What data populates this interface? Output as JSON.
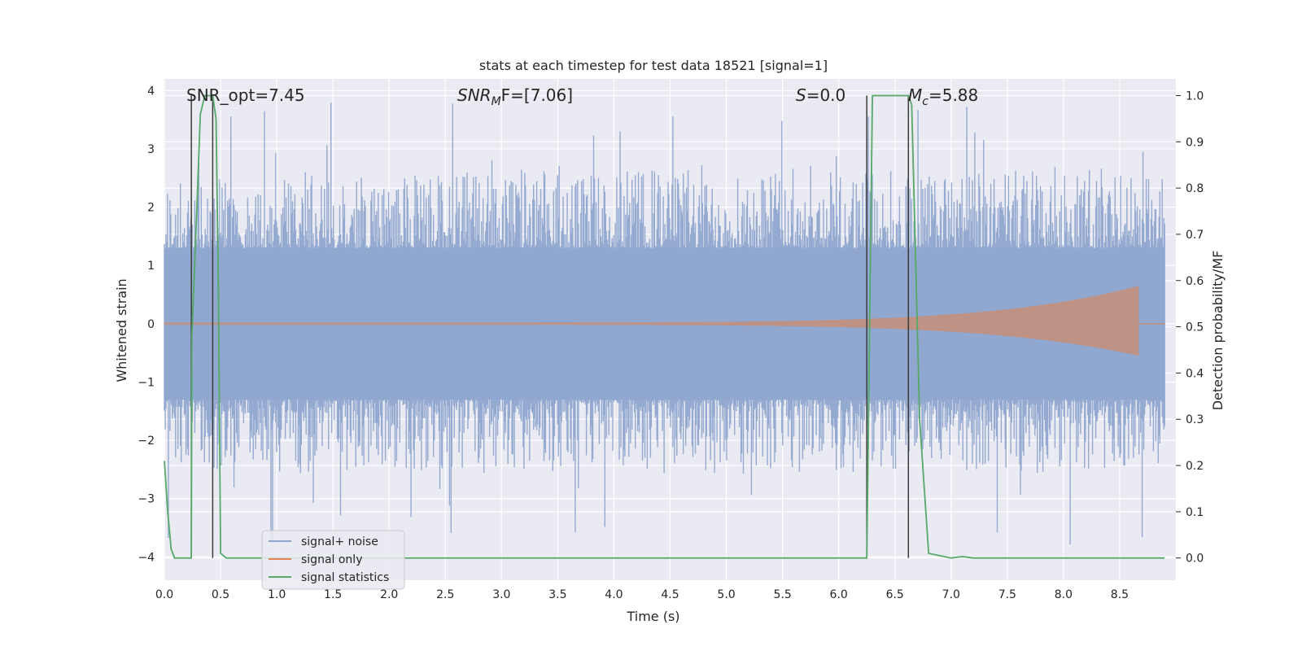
{
  "chart_data": {
    "type": "line",
    "title": "stats at each timestep for test data 18521 [signal=1]",
    "xlabel": "Time (s)",
    "ylabel_left": "Whitened strain",
    "ylabel_right": "Detection probability/MF",
    "xlim": [
      0.0,
      9.0
    ],
    "ylim_left": [
      -4.4,
      4.2
    ],
    "ylim_right": [
      -0.048,
      1.036
    ],
    "xticks": [
      "0.0",
      "0.5",
      "1.0",
      "1.5",
      "2.0",
      "2.5",
      "3.0",
      "3.5",
      "4.0",
      "4.5",
      "5.0",
      "5.5",
      "6.0",
      "6.5",
      "7.0",
      "7.5",
      "8.0",
      "8.5"
    ],
    "xtick_values": [
      0.0,
      0.5,
      1.0,
      1.5,
      2.0,
      2.5,
      3.0,
      3.5,
      4.0,
      4.5,
      5.0,
      5.5,
      6.0,
      6.5,
      7.0,
      7.5,
      8.0,
      8.5
    ],
    "yticks_left": [
      "−4",
      "−3",
      "−2",
      "−1",
      "0",
      "1",
      "2",
      "3",
      "4"
    ],
    "ytick_values_left": [
      -4,
      -3,
      -2,
      -1,
      0,
      1,
      2,
      3,
      4
    ],
    "yticks_right": [
      "0.0",
      "0.1",
      "0.2",
      "0.3",
      "0.4",
      "0.5",
      "0.6",
      "0.7",
      "0.8",
      "0.9",
      "1.0"
    ],
    "ytick_values_right": [
      0.0,
      0.1,
      0.2,
      0.3,
      0.4,
      0.5,
      0.6,
      0.7,
      0.8,
      0.9,
      1.0
    ],
    "annotations": {
      "snr_opt": "SNR_opt=7.45",
      "snr_mf_main": "SNR",
      "snr_mf_sub": "M",
      "snr_mf_rest": "F=[7.06]",
      "s_main": "S",
      "s_rest": "=0.0",
      "mc_main": "M",
      "mc_sub": "c",
      "mc_rest": "=5.88"
    },
    "vertical_lines": [
      0.24,
      0.43,
      6.25,
      6.62
    ],
    "noise_envelope": {
      "x": [
        0.0,
        1.0,
        2.0,
        3.0,
        4.0,
        5.0,
        6.0,
        7.0,
        8.0,
        8.9
      ],
      "y_max": [
        2.4,
        2.6,
        2.5,
        2.7,
        2.6,
        2.8,
        2.7,
        2.6,
        2.7,
        2.5
      ],
      "y_min": [
        -2.4,
        -2.6,
        -2.5,
        -2.6,
        -2.5,
        -2.6,
        -2.6,
        -2.5,
        -2.6,
        -2.4
      ],
      "peak_max": 3.8,
      "peak_min": -3.8
    },
    "signal_only": {
      "start": 0.0,
      "end": 8.9,
      "peak_time": 8.67,
      "amplitude_start": 0.02,
      "amplitude_peak": 0.65
    },
    "series": [
      {
        "name": "signal statistics",
        "axis": "right",
        "color": "#55a868",
        "x": [
          0.0,
          0.03,
          0.06,
          0.09,
          0.24,
          0.245,
          0.28,
          0.32,
          0.36,
          0.4,
          0.43,
          0.46,
          0.48,
          0.5,
          0.55,
          0.6,
          6.25,
          6.28,
          6.3,
          6.62,
          6.65,
          6.72,
          6.8,
          6.9,
          7.0,
          7.1,
          7.2,
          7.3,
          8.9
        ],
        "y": [
          0.21,
          0.1,
          0.02,
          0.0,
          0.0,
          0.48,
          0.7,
          0.96,
          1.0,
          1.0,
          1.0,
          0.95,
          0.6,
          0.01,
          0.0,
          0.0,
          0.0,
          0.6,
          1.0,
          1.0,
          0.98,
          0.3,
          0.01,
          0.005,
          0.0,
          0.003,
          0.0,
          0.0,
          0.0
        ]
      }
    ],
    "legend": [
      {
        "label": "signal+ noise",
        "color": "#8fa7cf"
      },
      {
        "label": "signal only",
        "color": "#dd8452"
      },
      {
        "label": "signal statistics",
        "color": "#55a868"
      }
    ],
    "legend_position": "lower-left",
    "grid": true,
    "colors": {
      "plot_bg": "#eaeaf2",
      "grid": "#ffffff",
      "noise": "#8fa7cf",
      "signal": "#dd8452",
      "stats": "#55a868",
      "vline": "#3b3b3b"
    }
  }
}
